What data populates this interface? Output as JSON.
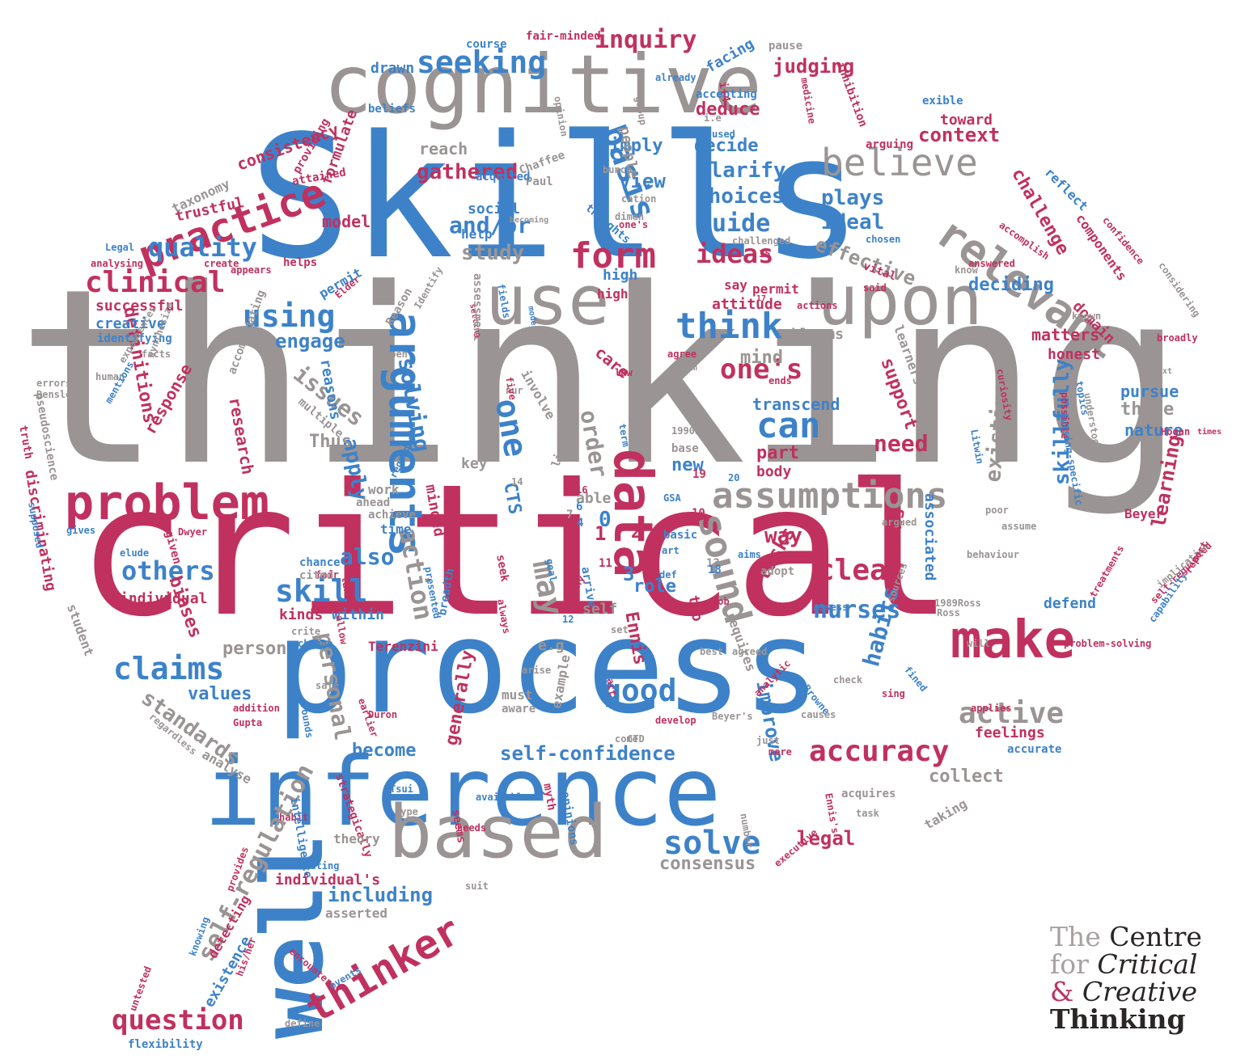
{
  "colors": {
    "pink": "#c0315f",
    "blue": "#3d82c9",
    "gray": "#9a9494",
    "text": "#2a2626"
  },
  "brand": {
    "line1_a": "The",
    "line1_b": "Centre",
    "line2_a": "for",
    "line2_b": "Critical",
    "line3_a": "&",
    "line3_b": "Creative",
    "line4": "Thinking"
  },
  "words": [
    "thinking",
    "critical",
    "Skills",
    "process",
    "inference",
    "cognitive",
    "well",
    "based",
    "use",
    "upon",
    "arguments",
    "data",
    "problem",
    "make",
    "assumptions",
    "practice",
    "relevant",
    "believe",
    "thinker",
    "self-regulation",
    "seeking",
    "inquiry",
    "form",
    "clinical",
    "quality",
    "using",
    "think",
    "basis",
    "one's",
    "can",
    "claims",
    "skill",
    "others",
    "sound",
    "good",
    "active",
    "accuracy",
    "self-confidence",
    "solve",
    "question",
    "standards",
    "clear",
    "nurses",
    "issues",
    "skillfully",
    "learning",
    "personal",
    "improve",
    "habits",
    "existing",
    "including",
    "legal",
    "consensus",
    "collect",
    "ideas",
    "guide",
    "choices",
    "clarify",
    "gathered",
    "context",
    "judging",
    "deduce",
    "effective",
    "deciding",
    "study",
    "model",
    "and/or",
    "view",
    "plays",
    "ideal",
    "engage",
    "solving",
    "apply",
    "also",
    "way",
    "need",
    "one",
    "action",
    "order",
    "may",
    "challenge",
    "components",
    "reflect",
    "domain",
    "matters",
    "honest",
    "pursue",
    "three",
    "nature",
    "support",
    "learners",
    "transcend",
    "mind",
    "care",
    "new",
    "part",
    "body",
    "definitions",
    "response",
    "research",
    "discriminating",
    "biases",
    "values",
    "become",
    "generally",
    "feelings",
    "accurate",
    "taking",
    "acquires",
    "person",
    "Terenzini",
    "Ennis",
    "role",
    "two",
    "tasks",
    "means",
    "associated",
    "Beyer",
    "defend",
    "successful",
    "creative",
    "identifying",
    "trustful",
    "consistency",
    "formulate",
    "taxonomy",
    "providing",
    "attained",
    "reach",
    "simply",
    "decide",
    "people",
    "drawn",
    "beliefs",
    "course",
    "fair-minded",
    "facing",
    "accepting",
    "pause",
    "already",
    "toward",
    "exible",
    "arguing",
    "inhibition",
    "medicine",
    "opinion",
    "group",
    "Chaffee",
    "Paul",
    "acquired",
    "bunch",
    "cation",
    "thoughts",
    "social",
    "help",
    "permit",
    "Elder",
    "high",
    "say",
    "attitude",
    "actions",
    "blooms",
    "fields",
    "mode",
    "setting",
    "Identify",
    "Reason",
    "assessment",
    "open",
    "facts",
    "human",
    "errors",
    "Bensley",
    "pseudoscience",
    "truth",
    "experiences",
    "mentions",
    "synthesize",
    "accommodating",
    "reasons",
    "multiple",
    "Thus",
    "involve",
    "nur",
    "five",
    "law",
    "agree",
    "from",
    "curiosity",
    "topics",
    "possible",
    "nursing-specific",
    "understood",
    "Litwin",
    "Hogan",
    "known",
    "broadly",
    "considering",
    "confidence",
    "accomplish",
    "analysing",
    "Legal",
    "create",
    "appears",
    "helps",
    "dimen",
    "one's",
    "challenged",
    "chosen",
    "vital",
    "said",
    "answered",
    "know",
    "regarded",
    "contributes",
    "1990b",
    "base",
    "key",
    "light",
    "able",
    "minded",
    "CTS",
    "work",
    "ahead",
    "achieve",
    "time",
    "basic",
    "art",
    "GSA",
    "aims",
    "adopt",
    "def",
    "goal",
    "arrive",
    "self",
    "presented",
    "chance",
    "fair",
    "cited",
    "take",
    "individual",
    "kinds",
    "within",
    "crite",
    "change",
    "allow",
    "breadth",
    "always",
    "seek",
    "many",
    "job",
    "assess",
    "1989Ross",
    "Ross",
    "sources",
    "will",
    "problem-solving",
    "capability",
    "self-regulated",
    "implication",
    "treatments",
    "report",
    "behaviour",
    "poor",
    "assume",
    "argued",
    "given",
    "elude",
    "Dwyer",
    "gives",
    "supposed",
    "student",
    "regardless",
    "analyse",
    "addition",
    "Gupta",
    "safe",
    "grounds",
    "earlier",
    "Duron",
    "must",
    "aware",
    "example",
    "act",
    "come",
    "CTD",
    "develop",
    "best",
    "check",
    "Beyer's",
    "Browne",
    "analytic",
    "sing",
    "fined",
    "causes",
    "just",
    "mere",
    "applies",
    "task",
    "Ennis's",
    "number",
    "executive",
    "opinions",
    "myth",
    "available.2",
    "type",
    "Tsui",
    "habit",
    "intelligence",
    "strategically",
    "needs",
    "seems",
    "formulating",
    "theory",
    "individual's",
    "asserted",
    "detecting",
    "existence",
    "his/her",
    "knowing",
    "provides",
    "untested",
    "flexibility",
    "define",
    "encounters",
    "events",
    "suit",
    "e.g",
    "requires",
    "agreed",
    "set",
    "arise",
    "permit",
    "times",
    "text",
    "high",
    "0",
    "1",
    "2",
    "3",
    "4",
    "6",
    "7",
    "10",
    "11",
    "12",
    "13",
    "14",
    "15",
    "16",
    "17",
    "18",
    "19",
    "20",
    "ends",
    "term",
    "i.e",
    "used",
    "becoming",
    "i+4"
  ]
}
